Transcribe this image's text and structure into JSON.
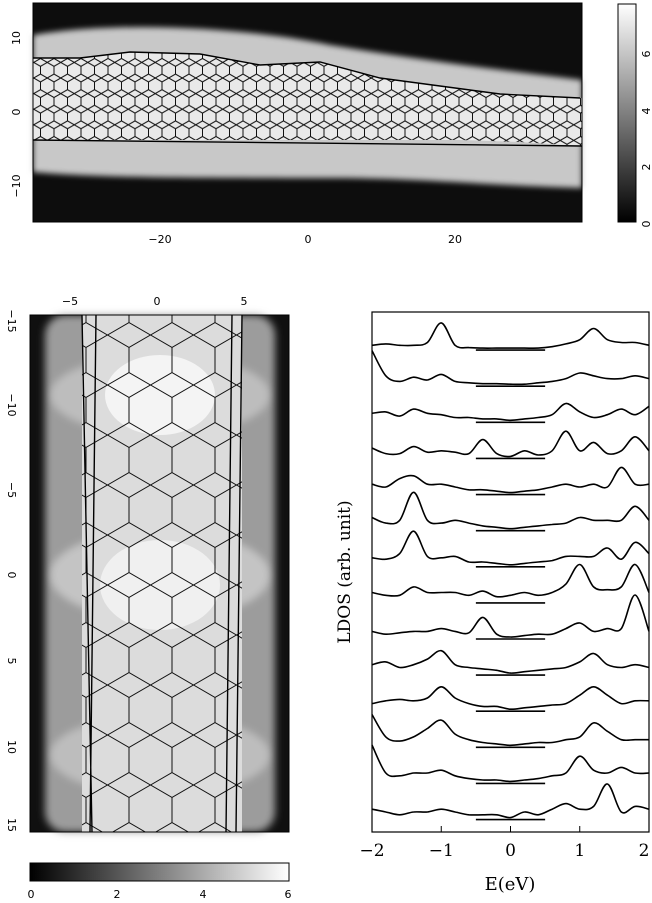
{
  "top_map": {
    "x_ticks": [
      "−20",
      "0",
      "20"
    ],
    "y_ticks": [
      "10",
      "0",
      "−10"
    ],
    "colorbar_ticks": [
      "0",
      "2",
      "4",
      "6"
    ]
  },
  "left_map": {
    "x_ticks": [
      "−5",
      "0",
      "5"
    ],
    "y_ticks": [
      "−15",
      "−10",
      "−5",
      "0",
      "5",
      "10",
      "15"
    ],
    "colorbar_ticks": [
      "0",
      "2",
      "4",
      "6"
    ]
  },
  "chart_data": {
    "type": "line",
    "xlabel": "E(eV)",
    "ylabel": "LDOS (arb. unit)",
    "xlim": [
      -2,
      2
    ],
    "x_ticks": [
      "−2",
      "−1",
      "0",
      "1",
      "2"
    ],
    "grid": false,
    "series_count": 14,
    "x": [
      -2.0,
      -1.8,
      -1.6,
      -1.4,
      -1.2,
      -1.0,
      -0.8,
      -0.6,
      -0.4,
      -0.2,
      0.0,
      0.2,
      0.4,
      0.6,
      0.8,
      1.0,
      1.2,
      1.4,
      1.6,
      1.8,
      2.0
    ],
    "series": [
      {
        "values": [
          0.1,
          0.15,
          0.1,
          0.1,
          0.2,
          0.9,
          0.1,
          0.02,
          0.0,
          0.0,
          0.0,
          0.0,
          0.0,
          0.05,
          0.15,
          0.3,
          0.7,
          0.3,
          0.2,
          0.2,
          0.1
        ]
      },
      {
        "values": [
          1.2,
          0.3,
          0.1,
          0.25,
          0.15,
          0.35,
          0.1,
          0.05,
          0.02,
          0.02,
          0.0,
          0.0,
          0.05,
          0.1,
          0.2,
          0.4,
          0.3,
          0.2,
          0.2,
          0.3,
          0.2
        ]
      },
      {
        "values": [
          0.25,
          0.3,
          0.15,
          0.4,
          0.25,
          0.2,
          0.1,
          0.1,
          0.05,
          0.05,
          0.0,
          0.05,
          0.1,
          0.2,
          0.6,
          0.3,
          0.1,
          0.2,
          0.4,
          0.2,
          0.5
        ]
      },
      {
        "values": [
          0.3,
          0.1,
          0.1,
          0.35,
          0.15,
          0.2,
          0.15,
          0.1,
          0.6,
          0.1,
          0.0,
          0.2,
          0.05,
          0.2,
          0.9,
          0.2,
          0.5,
          0.1,
          0.2,
          0.7,
          0.2
        ]
      },
      {
        "values": [
          0.3,
          0.2,
          0.5,
          0.6,
          0.3,
          0.3,
          0.2,
          0.1,
          0.1,
          0.05,
          0.0,
          0.05,
          0.1,
          0.2,
          0.3,
          0.2,
          0.3,
          0.2,
          0.9,
          0.3,
          0.3
        ]
      },
      {
        "values": [
          0.4,
          0.2,
          0.3,
          1.3,
          0.3,
          0.2,
          0.3,
          0.2,
          0.1,
          0.05,
          0.0,
          0.05,
          0.1,
          0.15,
          0.2,
          0.4,
          0.3,
          0.3,
          0.3,
          0.8,
          0.3
        ]
      },
      {
        "values": [
          0.25,
          0.2,
          0.4,
          1.2,
          0.3,
          0.25,
          0.3,
          0.1,
          0.1,
          0.05,
          0.0,
          0.05,
          0.1,
          0.15,
          0.3,
          0.3,
          0.3,
          0.6,
          0.2,
          0.8,
          0.4
        ]
      },
      {
        "values": [
          0.3,
          0.2,
          0.2,
          0.5,
          0.3,
          0.3,
          0.3,
          0.2,
          0.35,
          0.15,
          0.2,
          0.3,
          0.2,
          0.3,
          0.6,
          1.3,
          0.5,
          0.4,
          0.5,
          1.3,
          0.3
        ]
      },
      {
        "values": [
          0.2,
          0.1,
          0.15,
          0.2,
          0.2,
          0.3,
          0.2,
          0.15,
          0.7,
          0.1,
          0.0,
          0.05,
          0.1,
          0.1,
          0.3,
          0.5,
          0.2,
          0.3,
          0.3,
          1.5,
          0.2
        ]
      },
      {
        "values": [
          0.3,
          0.4,
          0.2,
          0.3,
          0.5,
          0.8,
          0.3,
          0.2,
          0.15,
          0.1,
          0.0,
          0.05,
          0.1,
          0.15,
          0.2,
          0.4,
          0.7,
          0.3,
          0.2,
          0.3,
          0.2
        ]
      },
      {
        "values": [
          0.2,
          0.3,
          0.35,
          0.3,
          0.4,
          0.8,
          0.4,
          0.2,
          0.1,
          0.1,
          0.0,
          0.05,
          0.1,
          0.15,
          0.2,
          0.5,
          0.8,
          0.5,
          0.2,
          0.3,
          0.3
        ]
      },
      {
        "values": [
          1.1,
          0.3,
          0.15,
          0.3,
          0.6,
          0.9,
          0.4,
          0.2,
          0.1,
          0.05,
          0.0,
          0.05,
          0.1,
          0.1,
          0.2,
          0.3,
          0.8,
          0.5,
          0.2,
          0.2,
          0.2
        ]
      },
      {
        "values": [
          1.3,
          0.3,
          0.2,
          0.3,
          0.3,
          0.4,
          0.2,
          0.1,
          0.05,
          0.05,
          0.0,
          0.05,
          0.1,
          0.2,
          0.3,
          0.9,
          0.4,
          0.3,
          0.5,
          0.3,
          0.3
        ]
      },
      {
        "values": [
          0.3,
          0.2,
          0.1,
          0.2,
          0.2,
          0.3,
          0.2,
          0.1,
          0.1,
          0.1,
          0.0,
          0.2,
          0.1,
          0.3,
          0.5,
          0.3,
          0.4,
          1.2,
          0.2,
          0.4,
          0.3
        ]
      }
    ]
  }
}
